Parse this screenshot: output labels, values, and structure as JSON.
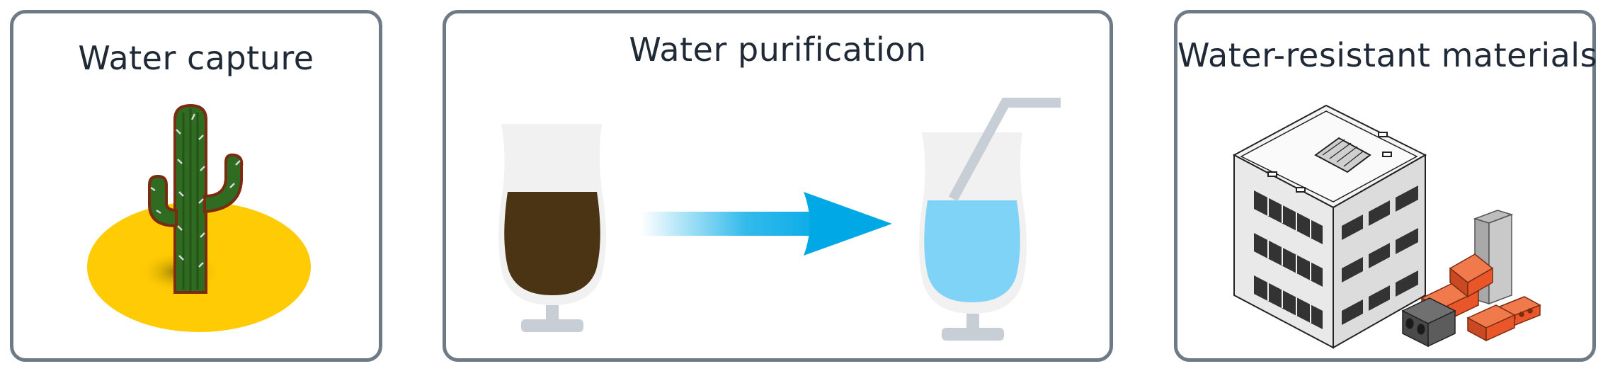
{
  "panels": [
    {
      "title": "Water capture",
      "icon": "cactus-icon"
    },
    {
      "title": "Water purification",
      "icon": "purification-icon"
    },
    {
      "title": "Water-resistant materials",
      "icon": "building-materials-icon"
    }
  ],
  "colors": {
    "border": "#6e7b86",
    "title": "#1f2a36",
    "sand": "#ffcb05",
    "cactus": "#2f6b21",
    "dirty_water": "#4a3413",
    "clean_water": "#7fd3f7",
    "arrow": "#00a9e6",
    "glass": "#f1f1f1",
    "stem": "#c8ced6",
    "brick": "#e8562a"
  }
}
